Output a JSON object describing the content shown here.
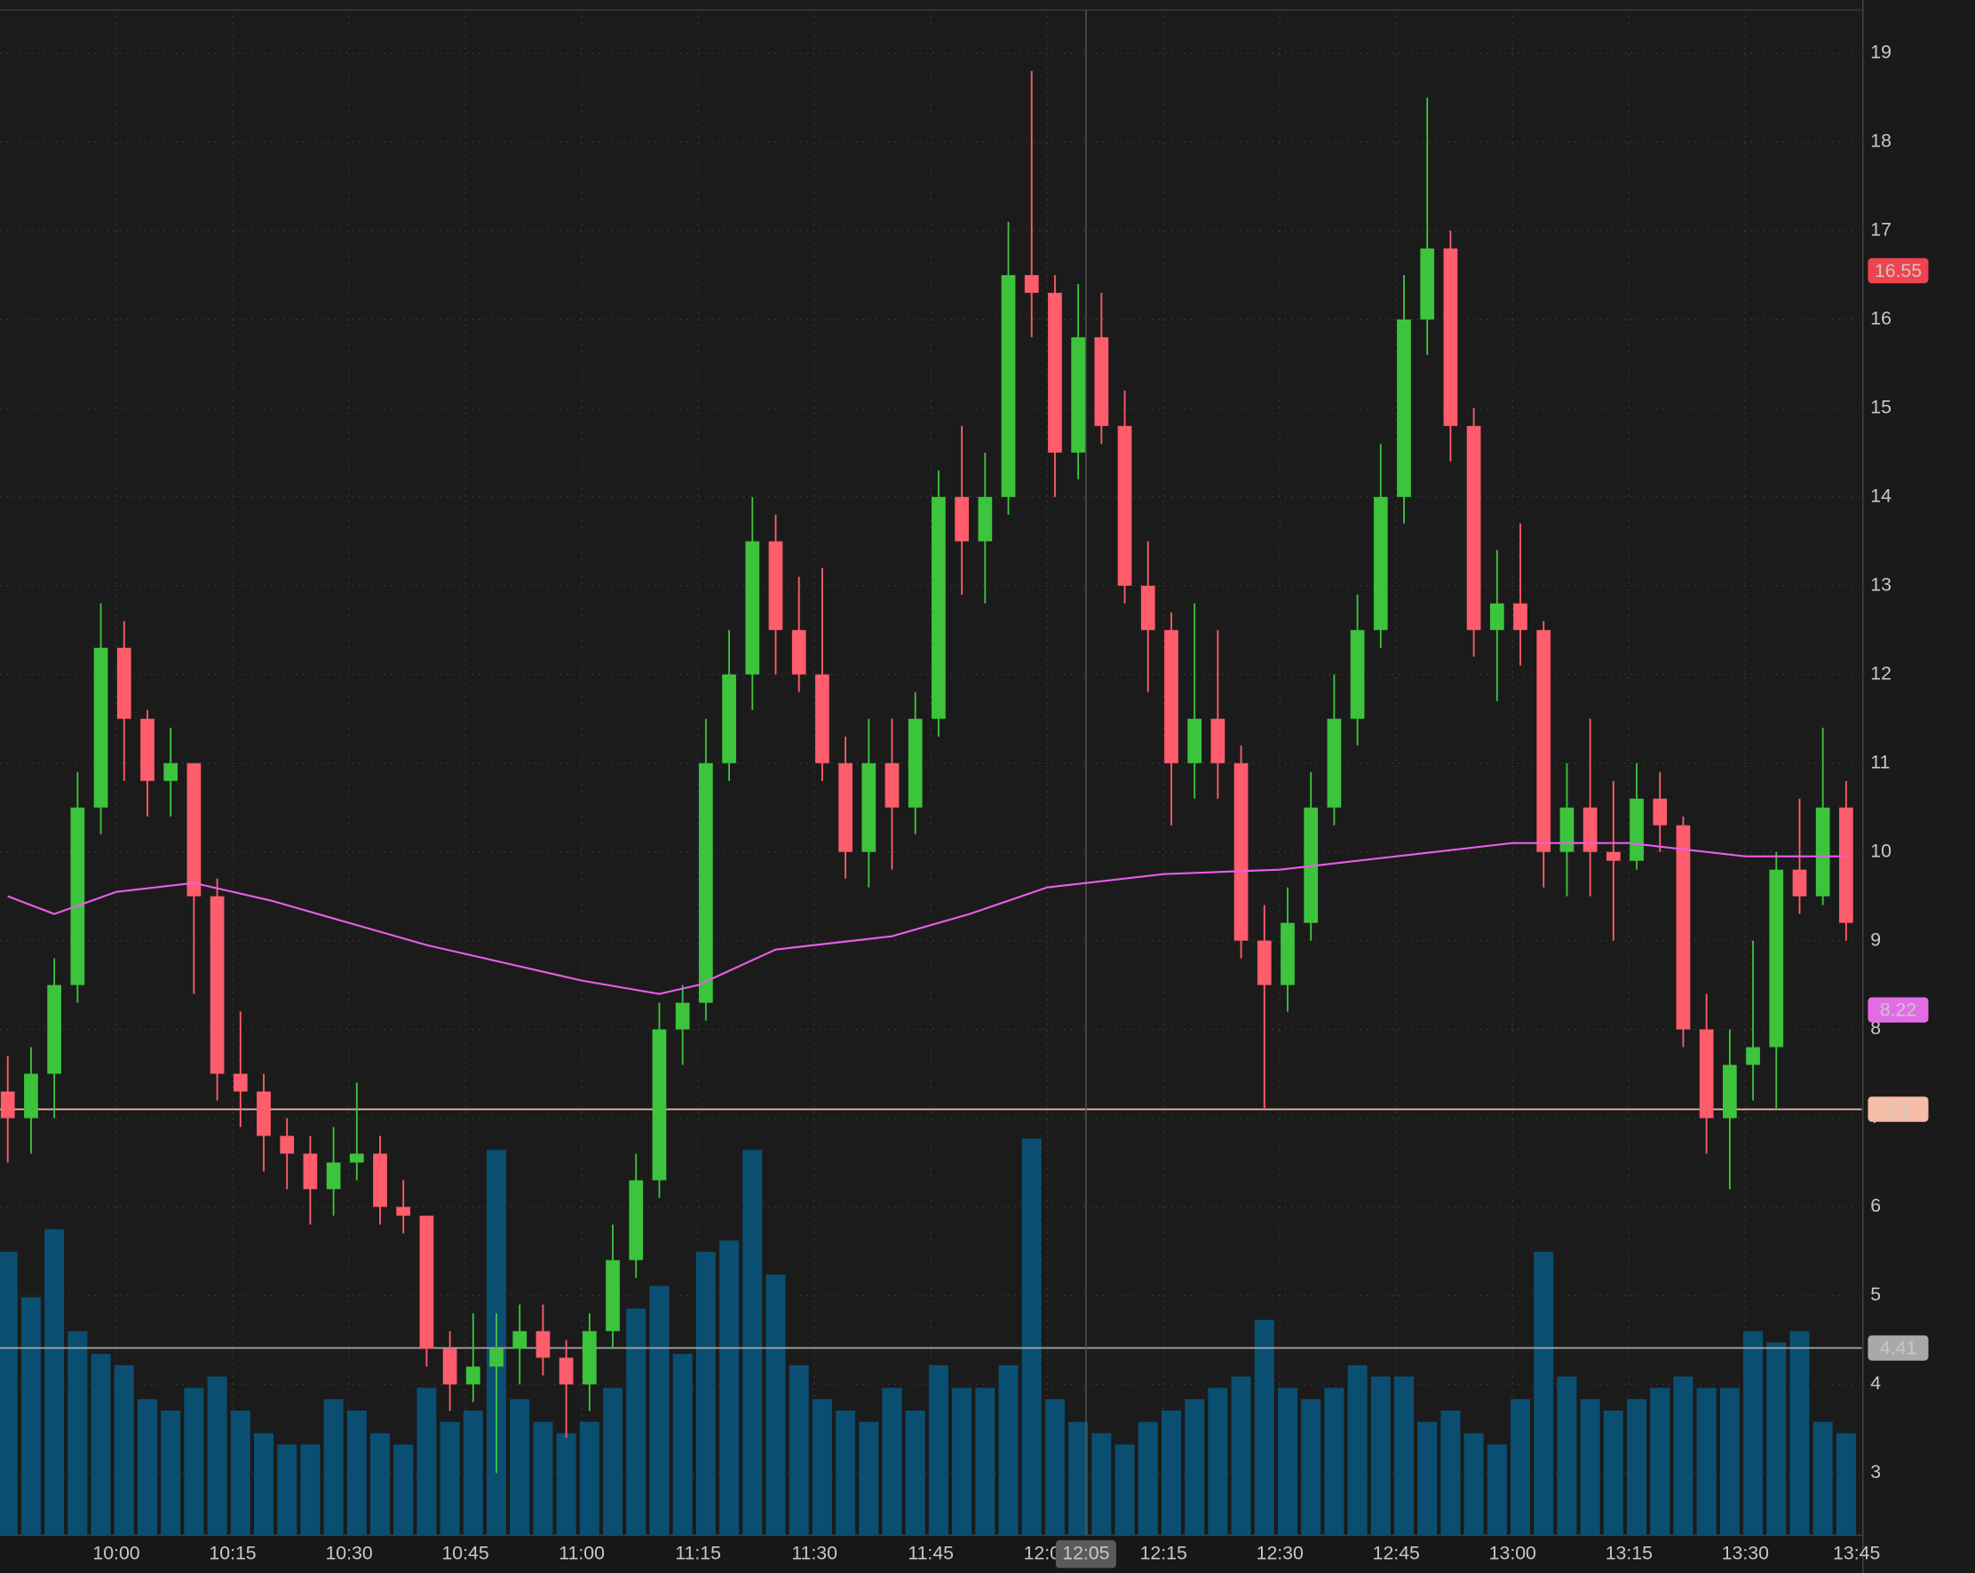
{
  "chart_data": {
    "type": "candlestick",
    "x": [
      "09:46",
      "09:49",
      "09:52",
      "09:55",
      "09:58",
      "10:01",
      "10:04",
      "10:07",
      "10:10",
      "10:13",
      "10:16",
      "10:19",
      "10:22",
      "10:25",
      "10:28",
      "10:31",
      "10:34",
      "10:37",
      "10:40",
      "10:43",
      "10:46",
      "10:49",
      "10:52",
      "10:55",
      "10:58",
      "11:01",
      "11:04",
      "11:07",
      "11:10",
      "11:13",
      "11:16",
      "11:19",
      "11:22",
      "11:25",
      "11:28",
      "11:31",
      "11:34",
      "11:37",
      "11:40",
      "11:43",
      "11:46",
      "11:49",
      "11:52",
      "11:55",
      "11:58",
      "12:01",
      "12:04",
      "12:07",
      "12:10",
      "12:13",
      "12:16",
      "12:19",
      "12:22",
      "12:25",
      "12:28",
      "12:31",
      "12:34",
      "12:37",
      "12:40",
      "12:43",
      "12:46",
      "12:49",
      "12:52",
      "12:55",
      "12:58",
      "13:01",
      "13:04",
      "13:07",
      "13:10",
      "13:13",
      "13:16",
      "13:19",
      "13:22",
      "13:25",
      "13:28",
      "13:31",
      "13:34",
      "13:37",
      "13:40",
      "13:43"
    ],
    "open": [
      7.3,
      7.0,
      7.5,
      8.5,
      10.5,
      12.3,
      11.5,
      10.8,
      11.0,
      9.5,
      7.5,
      7.3,
      6.8,
      6.6,
      6.2,
      6.5,
      6.6,
      6.0,
      5.9,
      4.4,
      4.0,
      4.2,
      4.4,
      4.6,
      4.3,
      4.0,
      4.6,
      5.4,
      6.3,
      8.0,
      8.3,
      11.0,
      12.0,
      13.5,
      12.5,
      12.0,
      11.0,
      10.0,
      11.0,
      10.5,
      11.5,
      14.0,
      13.5,
      14.0,
      16.5,
      16.3,
      14.5,
      15.8,
      14.8,
      13.0,
      12.5,
      11.0,
      11.5,
      11.0,
      9.0,
      8.5,
      9.2,
      10.5,
      11.5,
      12.5,
      14.0,
      16.0,
      16.8,
      14.8,
      12.5,
      12.8,
      12.5,
      10.0,
      10.5,
      10.0,
      9.9,
      10.6,
      10.3,
      8.0,
      7.0,
      7.6,
      7.8,
      9.8,
      9.5,
      10.5
    ],
    "high": [
      7.7,
      7.8,
      8.8,
      10.9,
      12.8,
      12.6,
      11.6,
      11.4,
      11.0,
      9.7,
      8.2,
      7.5,
      7.0,
      6.8,
      6.9,
      7.4,
      6.8,
      6.3,
      5.9,
      4.6,
      4.8,
      4.8,
      4.9,
      4.9,
      4.5,
      4.8,
      5.8,
      6.6,
      8.3,
      8.5,
      11.5,
      12.5,
      14.0,
      13.8,
      13.1,
      13.2,
      11.3,
      11.5,
      11.5,
      11.8,
      14.3,
      14.8,
      14.5,
      17.1,
      18.8,
      16.5,
      16.4,
      16.3,
      15.2,
      13.5,
      12.7,
      12.8,
      12.5,
      11.2,
      9.4,
      9.6,
      10.9,
      12.0,
      12.9,
      14.6,
      16.5,
      18.5,
      17.0,
      15.0,
      13.4,
      13.7,
      12.6,
      11.0,
      11.5,
      10.8,
      11.0,
      10.9,
      10.4,
      8.4,
      8.0,
      9.0,
      10.0,
      10.6,
      11.4,
      10.8
    ],
    "low": [
      6.5,
      6.6,
      7.0,
      8.3,
      10.2,
      10.8,
      10.4,
      10.4,
      8.4,
      7.2,
      6.9,
      6.4,
      6.2,
      5.8,
      5.9,
      6.3,
      5.8,
      5.7,
      4.2,
      3.7,
      3.8,
      3.0,
      4.0,
      4.1,
      3.4,
      3.7,
      4.4,
      5.2,
      6.1,
      7.6,
      8.1,
      10.8,
      11.6,
      12.0,
      11.8,
      10.8,
      9.7,
      9.6,
      9.8,
      10.2,
      11.3,
      12.9,
      12.8,
      13.8,
      15.8,
      14.0,
      14.2,
      14.6,
      12.8,
      11.8,
      10.3,
      10.6,
      10.6,
      8.8,
      7.1,
      8.2,
      9.0,
      10.3,
      11.2,
      12.3,
      13.7,
      15.6,
      14.4,
      12.2,
      11.7,
      12.1,
      9.6,
      9.5,
      9.5,
      9.0,
      9.8,
      10.0,
      7.8,
      6.6,
      6.2,
      7.2,
      7.1,
      9.3,
      9.4,
      9.0
    ],
    "close": [
      7.0,
      7.5,
      8.5,
      10.5,
      12.3,
      11.5,
      10.8,
      11.0,
      9.5,
      7.5,
      7.3,
      6.8,
      6.6,
      6.2,
      6.5,
      6.6,
      6.0,
      5.9,
      4.4,
      4.0,
      4.2,
      4.4,
      4.6,
      4.3,
      4.0,
      4.6,
      5.4,
      6.3,
      8.0,
      8.3,
      11.0,
      12.0,
      13.5,
      12.5,
      12.0,
      11.0,
      10.0,
      11.0,
      10.5,
      11.5,
      14.0,
      13.5,
      14.0,
      16.5,
      16.3,
      14.5,
      15.8,
      14.8,
      13.0,
      12.5,
      11.0,
      11.5,
      11.0,
      9.0,
      8.5,
      9.2,
      10.5,
      11.5,
      12.5,
      14.0,
      16.0,
      16.8,
      14.8,
      12.5,
      12.8,
      12.5,
      10.0,
      10.5,
      10.0,
      9.9,
      10.6,
      10.3,
      8.0,
      7.0,
      7.6,
      7.8,
      9.8,
      9.5,
      10.5,
      9.2
    ],
    "up_color": "#3cc43c",
    "down_color": "#ff5c6c",
    "volume": {
      "color": "#0a4f72",
      "ylim": [
        0,
        400
      ],
      "values": [
        250,
        210,
        270,
        180,
        160,
        150,
        120,
        110,
        130,
        140,
        110,
        90,
        80,
        80,
        120,
        110,
        90,
        80,
        130,
        100,
        110,
        340,
        120,
        100,
        90,
        100,
        130,
        200,
        220,
        160,
        250,
        260,
        340,
        230,
        150,
        120,
        110,
        100,
        130,
        110,
        150,
        130,
        130,
        150,
        350,
        120,
        100,
        90,
        80,
        100,
        110,
        120,
        130,
        140,
        190,
        130,
        120,
        130,
        150,
        140,
        140,
        100,
        110,
        90,
        80,
        120,
        250,
        140,
        120,
        110,
        120,
        130,
        140,
        130,
        130,
        180,
        170,
        180,
        100,
        90
      ]
    },
    "ma": {
      "color": "#e95ee9",
      "x": [
        "09:46",
        "09:52",
        "10:00",
        "10:10",
        "10:20",
        "10:30",
        "10:40",
        "10:50",
        "11:00",
        "11:10",
        "11:15",
        "11:25",
        "11:40",
        "11:50",
        "12:00",
        "12:15",
        "12:30",
        "12:45",
        "13:00",
        "13:15",
        "13:30",
        "13:43"
      ],
      "values": [
        9.5,
        9.3,
        9.55,
        9.65,
        9.45,
        9.2,
        8.95,
        8.75,
        8.55,
        8.4,
        8.5,
        8.9,
        9.05,
        9.3,
        9.6,
        9.75,
        9.8,
        9.95,
        10.1,
        10.1,
        9.95,
        9.95
      ]
    },
    "price_tags": [
      {
        "value": 16.55,
        "color": "#f0434f",
        "line": false
      },
      {
        "value": 8.22,
        "color": "#e36ce6",
        "line": false
      },
      {
        "value": 7.1,
        "color": "#f5bca8",
        "line": true
      },
      {
        "value": 4.41,
        "color": "#a9a9a9",
        "line": true
      }
    ],
    "crosshair_x": "12:05",
    "xlim": [
      "09:45",
      "13:45"
    ],
    "xticks": [
      "10:00",
      "10:15",
      "10:30",
      "10:45",
      "11:00",
      "11:15",
      "11:30",
      "11:45",
      "12:00",
      "12:15",
      "12:30",
      "12:45",
      "13:00",
      "13:15",
      "13:30",
      "13:45"
    ],
    "ylim": [
      2.3,
      19.6
    ],
    "yticks": [
      3,
      4,
      5,
      6,
      7,
      8,
      9,
      10,
      11,
      12,
      13,
      14,
      15,
      16,
      17,
      18,
      19
    ],
    "grid": true
  }
}
